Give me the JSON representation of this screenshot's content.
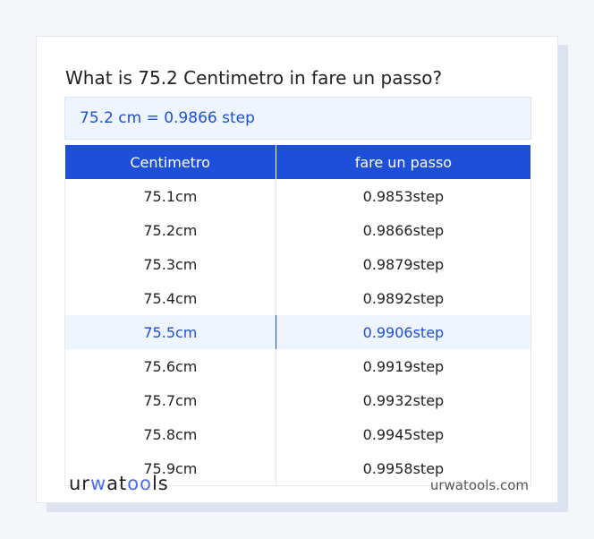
{
  "title": "What is 75.2 Centimetro in fare un passo?",
  "result": "75.2 cm = 0.9866 step",
  "table": {
    "headers": [
      "Centimetro",
      "fare un passo"
    ],
    "rows": [
      [
        "75.1cm",
        "0.9853step"
      ],
      [
        "75.2cm",
        "0.9866step"
      ],
      [
        "75.3cm",
        "0.9879step"
      ],
      [
        "75.4cm",
        "0.9892step"
      ],
      [
        "75.5cm",
        "0.9906step"
      ],
      [
        "75.6cm",
        "0.9919step"
      ],
      [
        "75.7cm",
        "0.9932step"
      ],
      [
        "75.8cm",
        "0.9945step"
      ],
      [
        "75.9cm",
        "0.9958step"
      ]
    ],
    "highlighted_row": 4
  },
  "footer": {
    "logo": "urwatools",
    "site": "urwatools.com"
  },
  "colors": {
    "accent": "#1d4fd8"
  }
}
